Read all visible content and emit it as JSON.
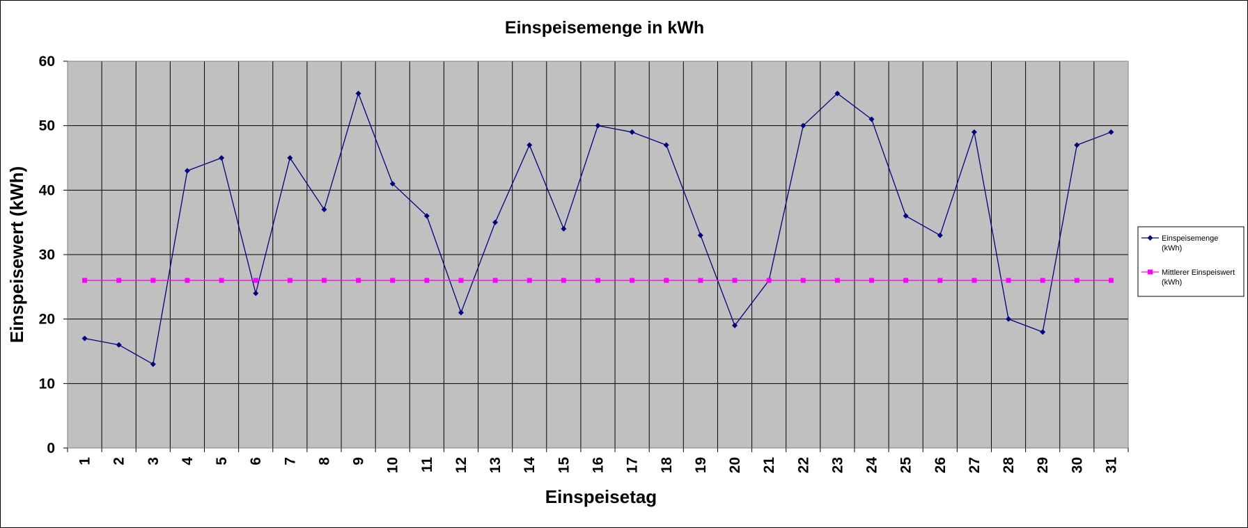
{
  "chart_data": {
    "type": "line",
    "title": "Einspeisemenge in kWh",
    "xlabel": "Einspeisetag",
    "ylabel": "Einspeisewert  (kWh)",
    "ylim": [
      0,
      60
    ],
    "yticks": [
      0,
      10,
      20,
      30,
      40,
      50,
      60
    ],
    "categories": [
      "1",
      "2",
      "3",
      "4",
      "5",
      "6",
      "7",
      "8",
      "9",
      "10",
      "11",
      "12",
      "13",
      "14",
      "15",
      "16",
      "17",
      "18",
      "19",
      "20",
      "21",
      "22",
      "23",
      "24",
      "25",
      "26",
      "27",
      "28",
      "29",
      "30",
      "31"
    ],
    "grid": true,
    "legend_position": "right",
    "plot_background": "#c0c0c0",
    "series": [
      {
        "name_lines": [
          "Einspeisemenge",
          "(kWh)"
        ],
        "color": "#000080",
        "marker": "diamond",
        "values": [
          17,
          16,
          13,
          43,
          45,
          24,
          45,
          37,
          55,
          41,
          36,
          21,
          35,
          47,
          34,
          50,
          49,
          47,
          33,
          19,
          26,
          50,
          55,
          51,
          36,
          33,
          49,
          20,
          18,
          47,
          49
        ]
      },
      {
        "name_lines": [
          "Mittlerer Einspeiswert",
          "(kWh)"
        ],
        "color": "#ff00ff",
        "marker": "square",
        "values": [
          26,
          26,
          26,
          26,
          26,
          26,
          26,
          26,
          26,
          26,
          26,
          26,
          26,
          26,
          26,
          26,
          26,
          26,
          26,
          26,
          26,
          26,
          26,
          26,
          26,
          26,
          26,
          26,
          26,
          26,
          26
        ]
      }
    ]
  }
}
